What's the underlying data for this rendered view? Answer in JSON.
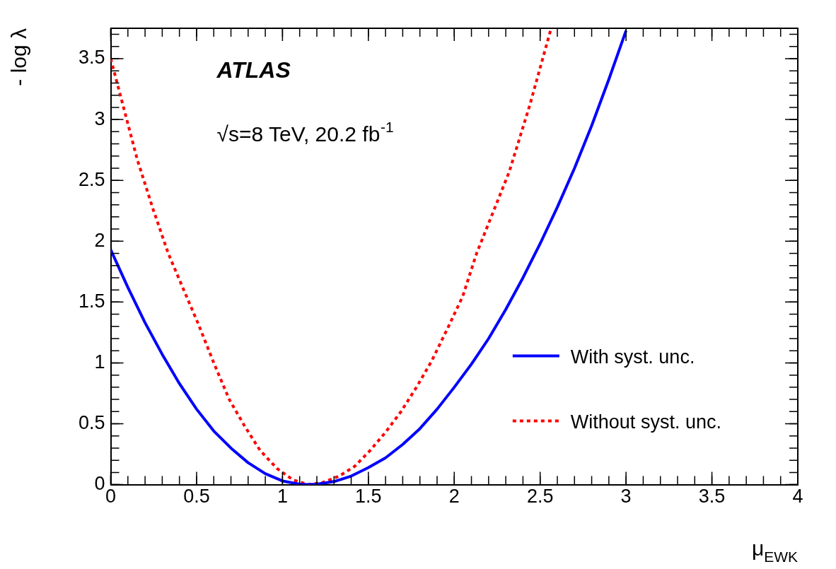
{
  "chart_data": {
    "type": "line",
    "xlabel": "μ$_{EWK}$",
    "ylabel": "- log λ",
    "annotations": [
      "ATLAS",
      "√s=8 TeV, 20.2 fb$^{-1}$"
    ],
    "xlim": [
      0,
      4
    ],
    "xticks": [
      0,
      0.5,
      1,
      1.5,
      2,
      2.5,
      3,
      3.5,
      4
    ],
    "ylim": [
      0,
      3.75
    ],
    "yticks": [
      0,
      0.5,
      1,
      1.5,
      2,
      2.5,
      3,
      3.5
    ],
    "grid": false,
    "legend": "bottom right",
    "marker": "none",
    "series": [
      {
        "name": "With syst. unc.",
        "color": "#0000ff",
        "line_style": "solid",
        "x": [
          0,
          0.1,
          0.2,
          0.3,
          0.4,
          0.5,
          0.6,
          0.7,
          0.8,
          0.9,
          1.0,
          1.1,
          1.15,
          1.2,
          1.3,
          1.4,
          1.5,
          1.6,
          1.7,
          1.8,
          1.9,
          2.0,
          2.1,
          2.2,
          2.3,
          2.4,
          2.5,
          2.6,
          2.7,
          2.8,
          2.9,
          3.0
        ],
        "values": [
          1.93,
          1.62,
          1.33,
          1.07,
          0.83,
          0.62,
          0.44,
          0.3,
          0.18,
          0.09,
          0.03,
          0.003,
          0,
          0.003,
          0.025,
          0.07,
          0.14,
          0.22,
          0.33,
          0.46,
          0.62,
          0.8,
          0.99,
          1.2,
          1.44,
          1.7,
          1.98,
          2.28,
          2.6,
          2.95,
          3.33,
          3.73
        ]
      },
      {
        "name": "Without syst. unc.",
        "color": "#ff0000",
        "line_style": "dotted",
        "x": [
          0,
          0.155,
          0.245,
          0.335,
          0.425,
          0.51,
          0.6,
          0.69,
          0.78,
          0.87,
          0.97,
          1.06,
          1.15,
          1.24,
          1.33,
          1.42,
          1.51,
          1.6,
          1.69,
          1.78,
          1.87,
          1.96,
          2.05,
          2.13,
          2.32,
          2.44,
          2.56
        ],
        "values": [
          3.5,
          2.67,
          2.27,
          1.9,
          1.6,
          1.32,
          1.0,
          0.7,
          0.48,
          0.28,
          0.13,
          0.04,
          0,
          0.02,
          0.07,
          0.15,
          0.28,
          0.43,
          0.6,
          0.8,
          1.02,
          1.28,
          1.55,
          1.9,
          2.57,
          3.12,
          3.73
        ]
      }
    ]
  }
}
